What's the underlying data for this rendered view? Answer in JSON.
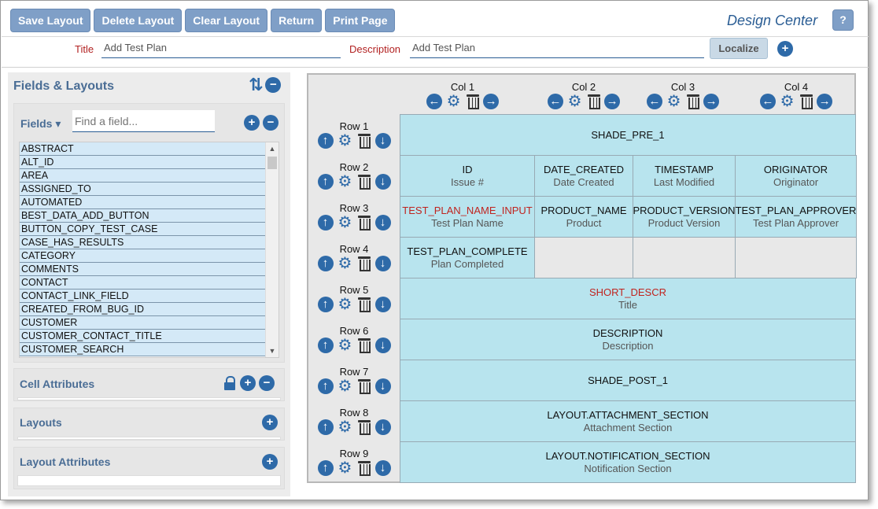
{
  "toolbar": {
    "buttons": [
      "Save Layout",
      "Delete Layout",
      "Clear Layout",
      "Return",
      "Print Page"
    ],
    "app_title": "Design Center",
    "help_label": "?"
  },
  "header": {
    "title_label": "Title",
    "title_value": "Add Test Plan",
    "description_label": "Description",
    "description_value": "Add Test Plan",
    "localize_label": "Localize"
  },
  "left_panel": {
    "title": "Fields & Layouts",
    "fields": {
      "label": "Fields ▾",
      "search_placeholder": "Find a field...",
      "items": [
        "ABSTRACT",
        "ALT_ID",
        "AREA",
        "ASSIGNED_TO",
        "AUTOMATED",
        "BEST_DATA_ADD_BUTTON",
        "BUTTON_COPY_TEST_CASE",
        "CASE_HAS_RESULTS",
        "CATEGORY",
        "COMMENTS",
        "CONTACT",
        "CONTACT_LINK_FIELD",
        "CREATED_FROM_BUG_ID",
        "CUSTOMER",
        "CUSTOMER_CONTACT_TITLE",
        "CUSTOMER_SEARCH"
      ]
    },
    "cell_attributes": "Cell Attributes",
    "layouts": "Layouts",
    "layout_attributes": "Layout Attributes"
  },
  "grid": {
    "columns": [
      "Col 1",
      "Col 2",
      "Col 3",
      "Col 4"
    ],
    "rows": [
      {
        "label": "Row 1",
        "cells": [
          {
            "name": "SHADE_PRE_1",
            "sub": "",
            "red": false
          }
        ]
      },
      {
        "label": "Row 2",
        "cells": [
          {
            "name": "ID",
            "sub": "Issue #",
            "red": false
          },
          {
            "name": "DATE_CREATED",
            "sub": "Date Created",
            "red": false
          },
          {
            "name": "TIMESTAMP",
            "sub": "Last Modified",
            "red": false
          },
          {
            "name": "ORIGINATOR",
            "sub": "Originator",
            "red": false
          }
        ]
      },
      {
        "label": "Row 3",
        "cells": [
          {
            "name": "TEST_PLAN_NAME_INPUT",
            "sub": "Test Plan Name",
            "red": true
          },
          {
            "name": "PRODUCT_NAME",
            "sub": "Product",
            "red": false
          },
          {
            "name": "PRODUCT_VERSION",
            "sub": "Product Version",
            "red": false
          },
          {
            "name": "TEST_PLAN_APPROVER",
            "sub": "Test Plan Approver",
            "red": false
          }
        ]
      },
      {
        "label": "Row 4",
        "cells": [
          {
            "name": "TEST_PLAN_COMPLETE",
            "sub": "Plan Completed",
            "red": false
          },
          {
            "name": "",
            "sub": "",
            "red": false
          },
          {
            "name": "",
            "sub": "",
            "red": false
          },
          {
            "name": "",
            "sub": "",
            "red": false
          }
        ]
      },
      {
        "label": "Row 5",
        "cells": [
          {
            "name": "SHORT_DESCR",
            "sub": "Title",
            "red": true
          }
        ]
      },
      {
        "label": "Row 6",
        "cells": [
          {
            "name": "DESCRIPTION",
            "sub": "Description",
            "red": false
          }
        ]
      },
      {
        "label": "Row 7",
        "cells": [
          {
            "name": "SHADE_POST_1",
            "sub": "",
            "red": false
          }
        ]
      },
      {
        "label": "Row 8",
        "cells": [
          {
            "name": "LAYOUT.ATTACHMENT_SECTION",
            "sub": "Attachment Section",
            "red": false
          }
        ]
      },
      {
        "label": "Row 9",
        "cells": [
          {
            "name": "LAYOUT.NOTIFICATION_SECTION",
            "sub": "Notification Section",
            "red": false
          }
        ]
      }
    ]
  },
  "colors": {
    "accent": "#2e6aa8",
    "toolbar_button": "#7f9fc7",
    "cell_fill": "#b8e4ee",
    "required_text": "#c0241f"
  }
}
